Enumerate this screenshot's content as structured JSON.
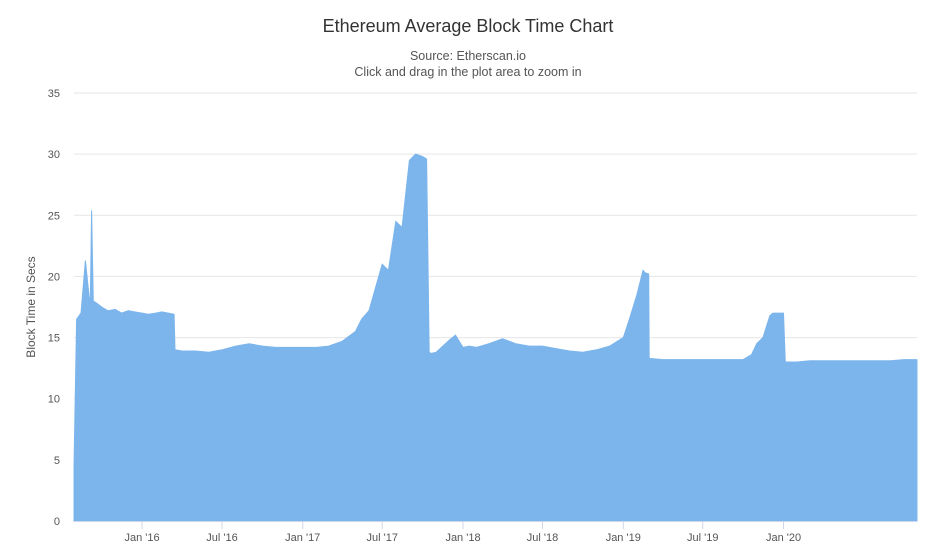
{
  "chart_data": {
    "type": "area",
    "title": "Ethereum Average Block Time Chart",
    "subtitle_source": "Source: Etherscan.io",
    "subtitle_hint": "Click and drag in the plot area to zoom in",
    "xlabel": "",
    "ylabel": "Block Time in Secs",
    "ylim": [
      0,
      35
    ],
    "xlim": [
      "2015-07-30",
      "2020-10-31"
    ],
    "y_ticks": [
      0,
      5,
      10,
      15,
      20,
      25,
      30,
      35
    ],
    "x_ticks": [
      {
        "date": "2016-01-01",
        "label": "Jan '16"
      },
      {
        "date": "2016-07-01",
        "label": "Jul '16"
      },
      {
        "date": "2017-01-01",
        "label": "Jan '17"
      },
      {
        "date": "2017-07-01",
        "label": "Jul '17"
      },
      {
        "date": "2018-01-01",
        "label": "Jan '18"
      },
      {
        "date": "2018-07-01",
        "label": "Jul '18"
      },
      {
        "date": "2019-01-01",
        "label": "Jan '19"
      },
      {
        "date": "2019-07-01",
        "label": "Jul '19"
      },
      {
        "date": "2020-01-01",
        "label": "Jan '20"
      }
    ],
    "grid": true,
    "legend": "none",
    "series_color": "#7cb5ec",
    "series": [
      {
        "x": [
          "2015-07-30",
          "2015-08-05",
          "2015-08-15",
          "2015-08-25",
          "2015-09-05",
          "2015-09-08",
          "2015-09-12",
          "2015-09-20",
          "2015-10-01",
          "2015-10-15",
          "2015-11-01",
          "2015-11-15",
          "2015-12-01",
          "2015-12-15",
          "2016-01-01",
          "2016-01-15",
          "2016-02-01",
          "2016-02-15",
          "2016-03-01",
          "2016-03-14",
          "2016-03-16",
          "2016-04-01",
          "2016-05-01",
          "2016-06-01",
          "2016-07-01",
          "2016-08-01",
          "2016-09-01",
          "2016-10-01",
          "2016-11-01",
          "2016-12-01",
          "2017-01-01",
          "2017-02-01",
          "2017-03-01",
          "2017-04-01",
          "2017-05-01",
          "2017-05-15",
          "2017-06-01",
          "2017-06-15",
          "2017-07-01",
          "2017-07-15",
          "2017-08-01",
          "2017-08-15",
          "2017-09-01",
          "2017-09-15",
          "2017-10-01",
          "2017-10-10",
          "2017-10-16",
          "2017-10-20",
          "2017-11-01",
          "2017-12-01",
          "2017-12-15",
          "2018-01-01",
          "2018-01-15",
          "2018-02-01",
          "2018-03-01",
          "2018-04-01",
          "2018-05-01",
          "2018-06-01",
          "2018-07-01",
          "2018-08-01",
          "2018-09-01",
          "2018-10-01",
          "2018-11-01",
          "2018-12-01",
          "2019-01-01",
          "2019-01-15",
          "2019-02-01",
          "2019-02-15",
          "2019-02-20",
          "2019-02-28",
          "2019-03-01",
          "2019-04-01",
          "2019-05-01",
          "2019-06-01",
          "2019-07-01",
          "2019-08-01",
          "2019-09-01",
          "2019-10-01",
          "2019-10-20",
          "2019-11-01",
          "2019-11-15",
          "2019-12-01",
          "2019-12-08",
          "2019-12-15",
          "2020-01-01",
          "2020-01-05",
          "2020-02-01",
          "2020-03-01",
          "2020-04-01",
          "2020-05-01",
          "2020-06-01",
          "2020-07-01",
          "2020-08-01",
          "2020-09-01",
          "2020-10-01",
          "2020-10-31"
        ],
        "y": [
          4.5,
          16.5,
          17.0,
          21.3,
          17.5,
          25.4,
          18.0,
          17.8,
          17.5,
          17.2,
          17.3,
          17.0,
          17.2,
          17.1,
          17.0,
          16.9,
          17.0,
          17.1,
          17.0,
          16.9,
          14.0,
          13.9,
          13.9,
          13.8,
          14.0,
          14.3,
          14.5,
          14.3,
          14.2,
          14.2,
          14.2,
          14.2,
          14.3,
          14.7,
          15.5,
          16.5,
          17.2,
          19.0,
          21.0,
          20.5,
          24.5,
          24.0,
          29.5,
          30.0,
          29.8,
          29.6,
          13.8,
          13.7,
          13.8,
          14.8,
          15.2,
          14.2,
          14.3,
          14.2,
          14.5,
          14.9,
          14.5,
          14.3,
          14.3,
          14.1,
          13.9,
          13.8,
          14.0,
          14.3,
          15.0,
          16.5,
          18.5,
          20.5,
          20.3,
          20.2,
          13.3,
          13.2,
          13.2,
          13.2,
          13.2,
          13.2,
          13.2,
          13.2,
          13.6,
          14.5,
          15.0,
          16.8,
          17.0,
          17.0,
          17.0,
          13.0,
          13.0,
          13.1,
          13.1,
          13.1,
          13.1,
          13.1,
          13.1,
          13.1,
          13.2,
          13.2
        ]
      }
    ]
  }
}
